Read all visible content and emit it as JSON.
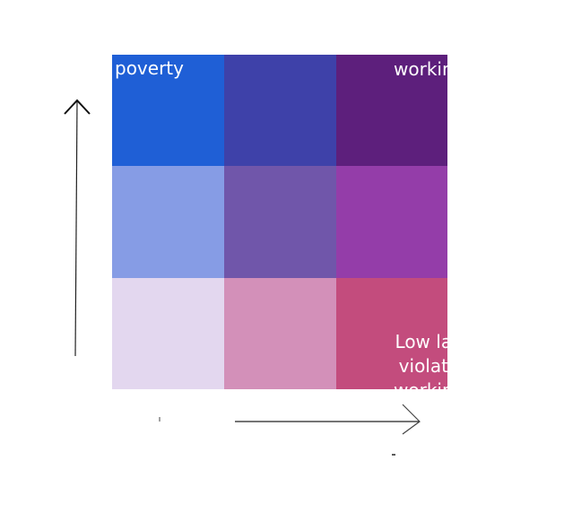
{
  "grid": {
    "colors": [
      [
        "#1f5fd6",
        "#3e41a9",
        "#5d1f7c"
      ],
      [
        "#869ce5",
        "#7056aa",
        "#943da9"
      ],
      [
        "#e3d7ef",
        "#d390b9",
        "#c34c7d"
      ]
    ]
  },
  "labels": {
    "top_left": "poverty",
    "top_right": "workin",
    "bottom_right": "Low la\nviolat\nworkin"
  },
  "axes": {
    "color": "#222222"
  }
}
